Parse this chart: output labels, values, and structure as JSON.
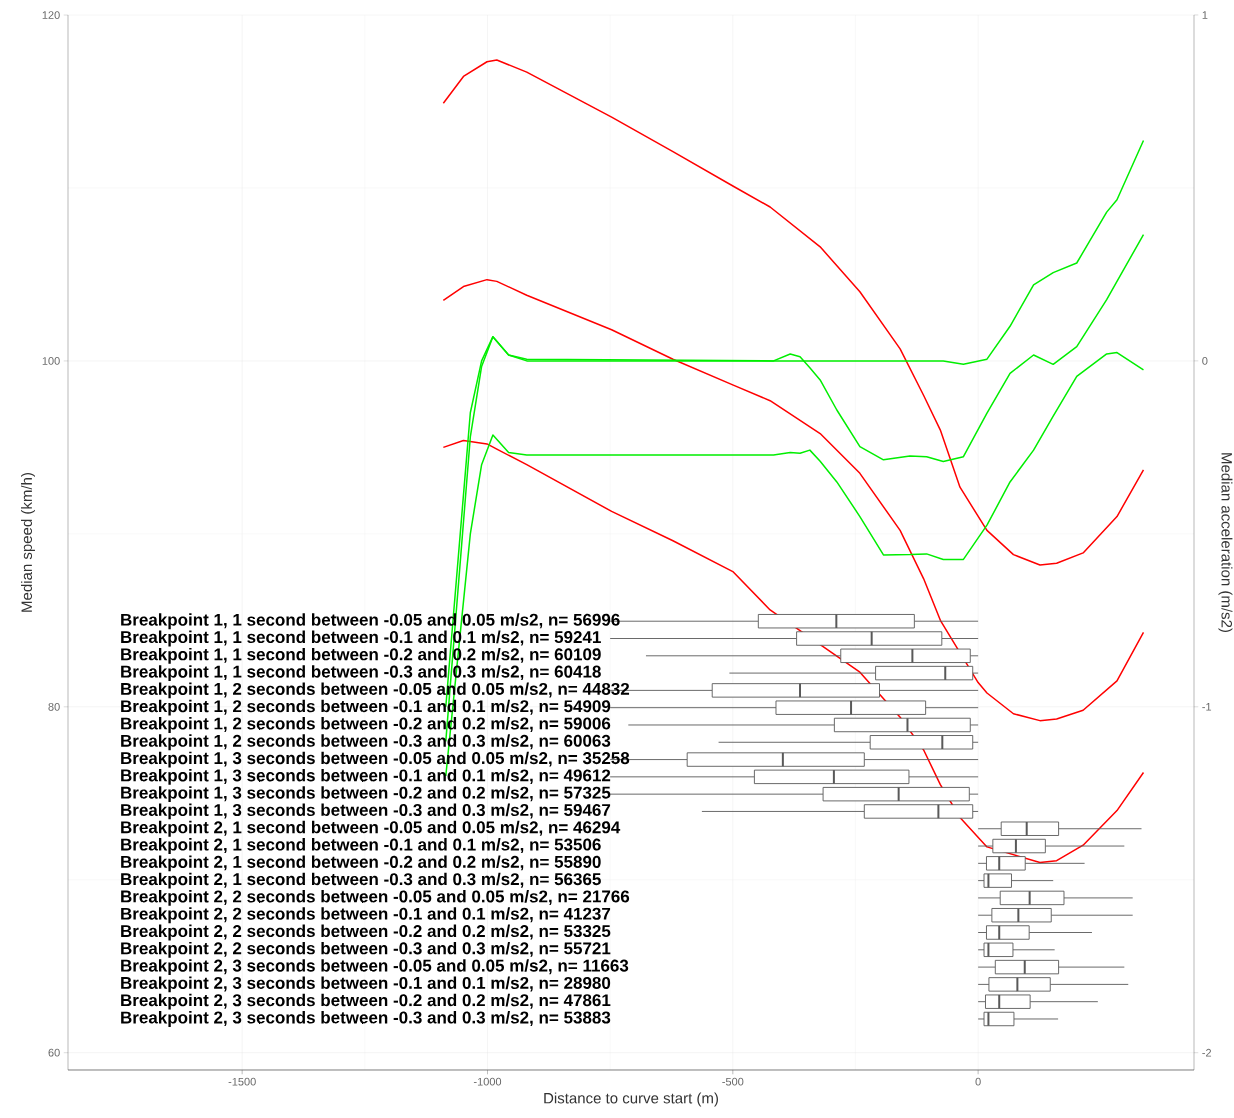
{
  "chart_data": [
    {
      "type": "line",
      "tick_labels": "y",
      "ylabel": "Median speed (km/h)",
      "y2label": "Median acceleration (m/s2)",
      "xlim": [
        -1855,
        440
      ],
      "ylim": [
        59,
        120
      ],
      "y2lim": [
        -2.05,
        1
      ],
      "xticks": [
        -1500,
        -1000,
        -500,
        0
      ],
      "yticks": [
        60,
        80,
        100,
        120
      ],
      "y2ticks": [
        -2,
        -1,
        0,
        1
      ],
      "grid": true,
      "series": [
        {
          "color": "#ff0000",
          "x": [
            -1090,
            -1049,
            -1001,
            -981,
            -920,
            -747,
            -622,
            -499,
            -424,
            -322,
            -241,
            -159,
            -111,
            -77,
            0,
            18,
            72,
            126,
            160,
            214,
            283,
            337
          ],
          "values": [
            103.5,
            104.3,
            104.7,
            104.6,
            103.8,
            101.8,
            100.1,
            98.6,
            97.7,
            95.8,
            93.5,
            90.2,
            87.4,
            85.0,
            81.4,
            80.8,
            79.6,
            79.2,
            79.3,
            79.8,
            81.5,
            84.3
          ]
        },
        {
          "color": "#ff0000",
          "x": [
            -1090,
            -1049,
            -1001,
            -981,
            -920,
            -747,
            -622,
            -499,
            -424,
            -322,
            -241,
            -159,
            -111,
            -77,
            -37,
            18,
            72,
            126,
            160,
            214,
            283,
            337
          ],
          "values": [
            114.9,
            116.45,
            117.3,
            117.4,
            116.7,
            114.1,
            112.1,
            110.1,
            108.9,
            106.6,
            104.0,
            100.7,
            98.0,
            96.0,
            92.7,
            90.2,
            88.8,
            88.2,
            88.3,
            88.9,
            91.0,
            93.7
          ]
        },
        {
          "color": "#ff0000",
          "x": [
            -1090,
            -1049,
            -1001,
            -981,
            -920,
            -747,
            -622,
            -499,
            -424,
            -241,
            -159,
            -111,
            -77,
            -37,
            18,
            126,
            160,
            214,
            283,
            337
          ],
          "values": [
            95.0,
            95.4,
            95.2,
            94.9,
            94.0,
            91.3,
            89.6,
            87.8,
            85.6,
            82.0,
            79.4,
            77.5,
            75.5,
            73.6,
            71.9,
            71.0,
            71.1,
            72.0,
            74.0,
            76.2
          ]
        },
        {
          "color": "#00ee00",
          "axis": "y2",
          "x": [
            -1085,
            -1035,
            -1012,
            -989,
            -957,
            -920,
            -417,
            -383,
            -363,
            -343,
            -322,
            -288,
            -241,
            -193,
            -139,
            -105,
            -71,
            -30,
            18,
            65,
            113,
            153,
            201,
            262,
            283,
            337
          ],
          "values": [
            -1.1,
            -0.22,
            -0.016,
            0.07,
            0.017,
            0.005,
            0,
            0.02,
            0.012,
            -0.02,
            -0.055,
            -0.142,
            -0.248,
            -0.286,
            -0.275,
            -0.277,
            -0.291,
            -0.277,
            -0.151,
            -0.036,
            0.017,
            -0.01,
            0.041,
            0.177,
            0.23,
            0.365
          ]
        },
        {
          "color": "#00ee00",
          "axis": "y2",
          "x": [
            -1085,
            -1035,
            -1012,
            -989,
            -957,
            -920,
            -417,
            -383,
            -363,
            -343,
            -322,
            -288,
            -241,
            -193,
            -139,
            -105,
            -71,
            -30,
            18,
            65,
            113,
            153,
            201,
            262,
            283,
            337
          ],
          "values": [
            -1.0,
            -0.15,
            0,
            0.07,
            0.017,
            0,
            0,
            0,
            0,
            0,
            0,
            0,
            0,
            0,
            0,
            0,
            0,
            -0.01,
            0.005,
            0.1,
            0.22,
            0.255,
            0.283,
            0.43,
            0.466,
            0.637
          ]
        },
        {
          "color": "#00ee00",
          "axis": "y2",
          "x": [
            -1085,
            -1035,
            -1012,
            -989,
            -957,
            -920,
            -417,
            -383,
            -363,
            -343,
            -322,
            -288,
            -241,
            -193,
            -139,
            -105,
            -71,
            -30,
            18,
            65,
            113,
            153,
            201,
            262,
            283,
            337
          ],
          "values": [
            -1.2,
            -0.5,
            -0.3,
            -0.214,
            -0.265,
            -0.272,
            -0.272,
            -0.265,
            -0.267,
            -0.258,
            -0.29,
            -0.35,
            -0.45,
            -0.561,
            -0.56,
            -0.558,
            -0.574,
            -0.574,
            -0.475,
            -0.35,
            -0.258,
            -0.16,
            -0.045,
            0.02,
            0.024,
            -0.026
          ]
        }
      ]
    },
    {
      "type": "box",
      "orientation": "horizontal",
      "xlabel": "Distance to curve start (m)",
      "xlim": [
        -1855,
        440
      ],
      "xticks": [
        -1500,
        -1000,
        -500,
        0
      ],
      "categories": [
        "Breakpoint 1, 1 second between -0.05 and 0.05 m/s2, n= 56996",
        "Breakpoint 1, 1 second between -0.1 and 0.1 m/s2, n= 59241",
        "Breakpoint 1, 1 second between -0.2 and 0.2 m/s2, n= 60109",
        "Breakpoint 1, 1 second between -0.3 and 0.3 m/s2, n= 60418",
        "Breakpoint 1, 2 seconds between -0.05 and 0.05 m/s2, n= 44832",
        "Breakpoint 1, 2 seconds between -0.1 and 0.1 m/s2, n= 54909",
        "Breakpoint 1, 2 seconds between -0.2 and 0.2 m/s2, n= 59006",
        "Breakpoint 1, 2 seconds between -0.3 and 0.3 m/s2, n= 60063",
        "Breakpoint 1, 3 seconds between -0.05 and 0.05 m/s2, n= 35258",
        "Breakpoint 1, 3 seconds between -0.1 and 0.1 m/s2, n= 49612",
        "Breakpoint 1, 3 seconds between -0.2 and 0.2 m/s2, n= 57325",
        "Breakpoint 1, 3 seconds between -0.3 and 0.3 m/s2, n= 59467",
        "Breakpoint 2, 1 second between -0.05 and 0.05 m/s2, n= 46294",
        "Breakpoint 2, 1 second between -0.1 and 0.1 m/s2, n= 53506",
        "Breakpoint 2, 1 second between -0.2 and 0.2 m/s2, n= 55890",
        "Breakpoint 2, 1 second between -0.3 and 0.3 m/s2, n= 56365",
        "Breakpoint 2, 2 seconds between -0.05 and 0.05 m/s2, n= 21766",
        "Breakpoint 2, 2 seconds between -0.1 and 0.1 m/s2, n= 41237",
        "Breakpoint 2, 2 seconds between -0.2 and 0.2 m/s2, n= 53325",
        "Breakpoint 2, 2 seconds between -0.3 and 0.3 m/s2, n= 55721",
        "Breakpoint 2, 3 seconds between -0.05 and 0.05 m/s2, n= 11663",
        "Breakpoint 2, 3 seconds between -0.1 and 0.1 m/s2, n= 28980",
        "Breakpoint 2, 3 seconds between -0.2 and 0.2 m/s2, n= 47861",
        "Breakpoint 2, 3 seconds between -0.3 and 0.3 m/s2, n= 53883"
      ],
      "boxes": [
        {
          "low": -750,
          "q1": -448,
          "median": -289,
          "q3": -130,
          "high": 0
        },
        {
          "low": -750,
          "q1": -370,
          "median": -217,
          "q3": -74,
          "high": 0
        },
        {
          "low": -677,
          "q1": -280,
          "median": -134,
          "q3": -16,
          "high": 0
        },
        {
          "low": -507,
          "q1": -209,
          "median": -67,
          "q3": -11,
          "high": 0
        },
        {
          "low": -750,
          "q1": -542,
          "median": -363,
          "q3": -201,
          "high": 0
        },
        {
          "low": -750,
          "q1": -412,
          "median": -259,
          "q3": -107,
          "high": 0
        },
        {
          "low": -713,
          "q1": -293,
          "median": -144,
          "q3": -16,
          "high": 0
        },
        {
          "low": -529,
          "q1": -220,
          "median": -73,
          "q3": -11,
          "high": 0
        },
        {
          "low": -750,
          "q1": -593,
          "median": -398,
          "q3": -232,
          "high": 0
        },
        {
          "low": -750,
          "q1": -456,
          "median": -294,
          "q3": -141,
          "high": 0
        },
        {
          "low": -750,
          "q1": -316,
          "median": -162,
          "q3": -18,
          "high": 0
        },
        {
          "low": -563,
          "q1": -232,
          "median": -81,
          "q3": -11,
          "high": 0
        },
        {
          "low": 0,
          "q1": 47,
          "median": 99,
          "q3": 164,
          "high": 333
        },
        {
          "low": 0,
          "q1": 30,
          "median": 77,
          "q3": 137,
          "high": 298
        },
        {
          "low": 0,
          "q1": 17,
          "median": 43,
          "q3": 96,
          "high": 217
        },
        {
          "low": 0,
          "q1": 12,
          "median": 21,
          "q3": 68,
          "high": 153
        },
        {
          "low": 0,
          "q1": 45,
          "median": 105,
          "q3": 175,
          "high": 315
        },
        {
          "low": 0,
          "q1": 28,
          "median": 82,
          "q3": 149,
          "high": 315
        },
        {
          "low": 0,
          "q1": 17,
          "median": 43,
          "q3": 104,
          "high": 232
        },
        {
          "low": 0,
          "q1": 12,
          "median": 21,
          "q3": 71,
          "high": 156
        },
        {
          "low": 0,
          "q1": 35,
          "median": 95,
          "q3": 164,
          "high": 298
        },
        {
          "low": 0,
          "q1": 22,
          "median": 80,
          "q3": 147,
          "high": 306
        },
        {
          "low": 0,
          "q1": 15,
          "median": 43,
          "q3": 106,
          "high": 244
        },
        {
          "low": 0,
          "q1": 12,
          "median": 21,
          "q3": 73,
          "high": 163
        }
      ]
    }
  ]
}
